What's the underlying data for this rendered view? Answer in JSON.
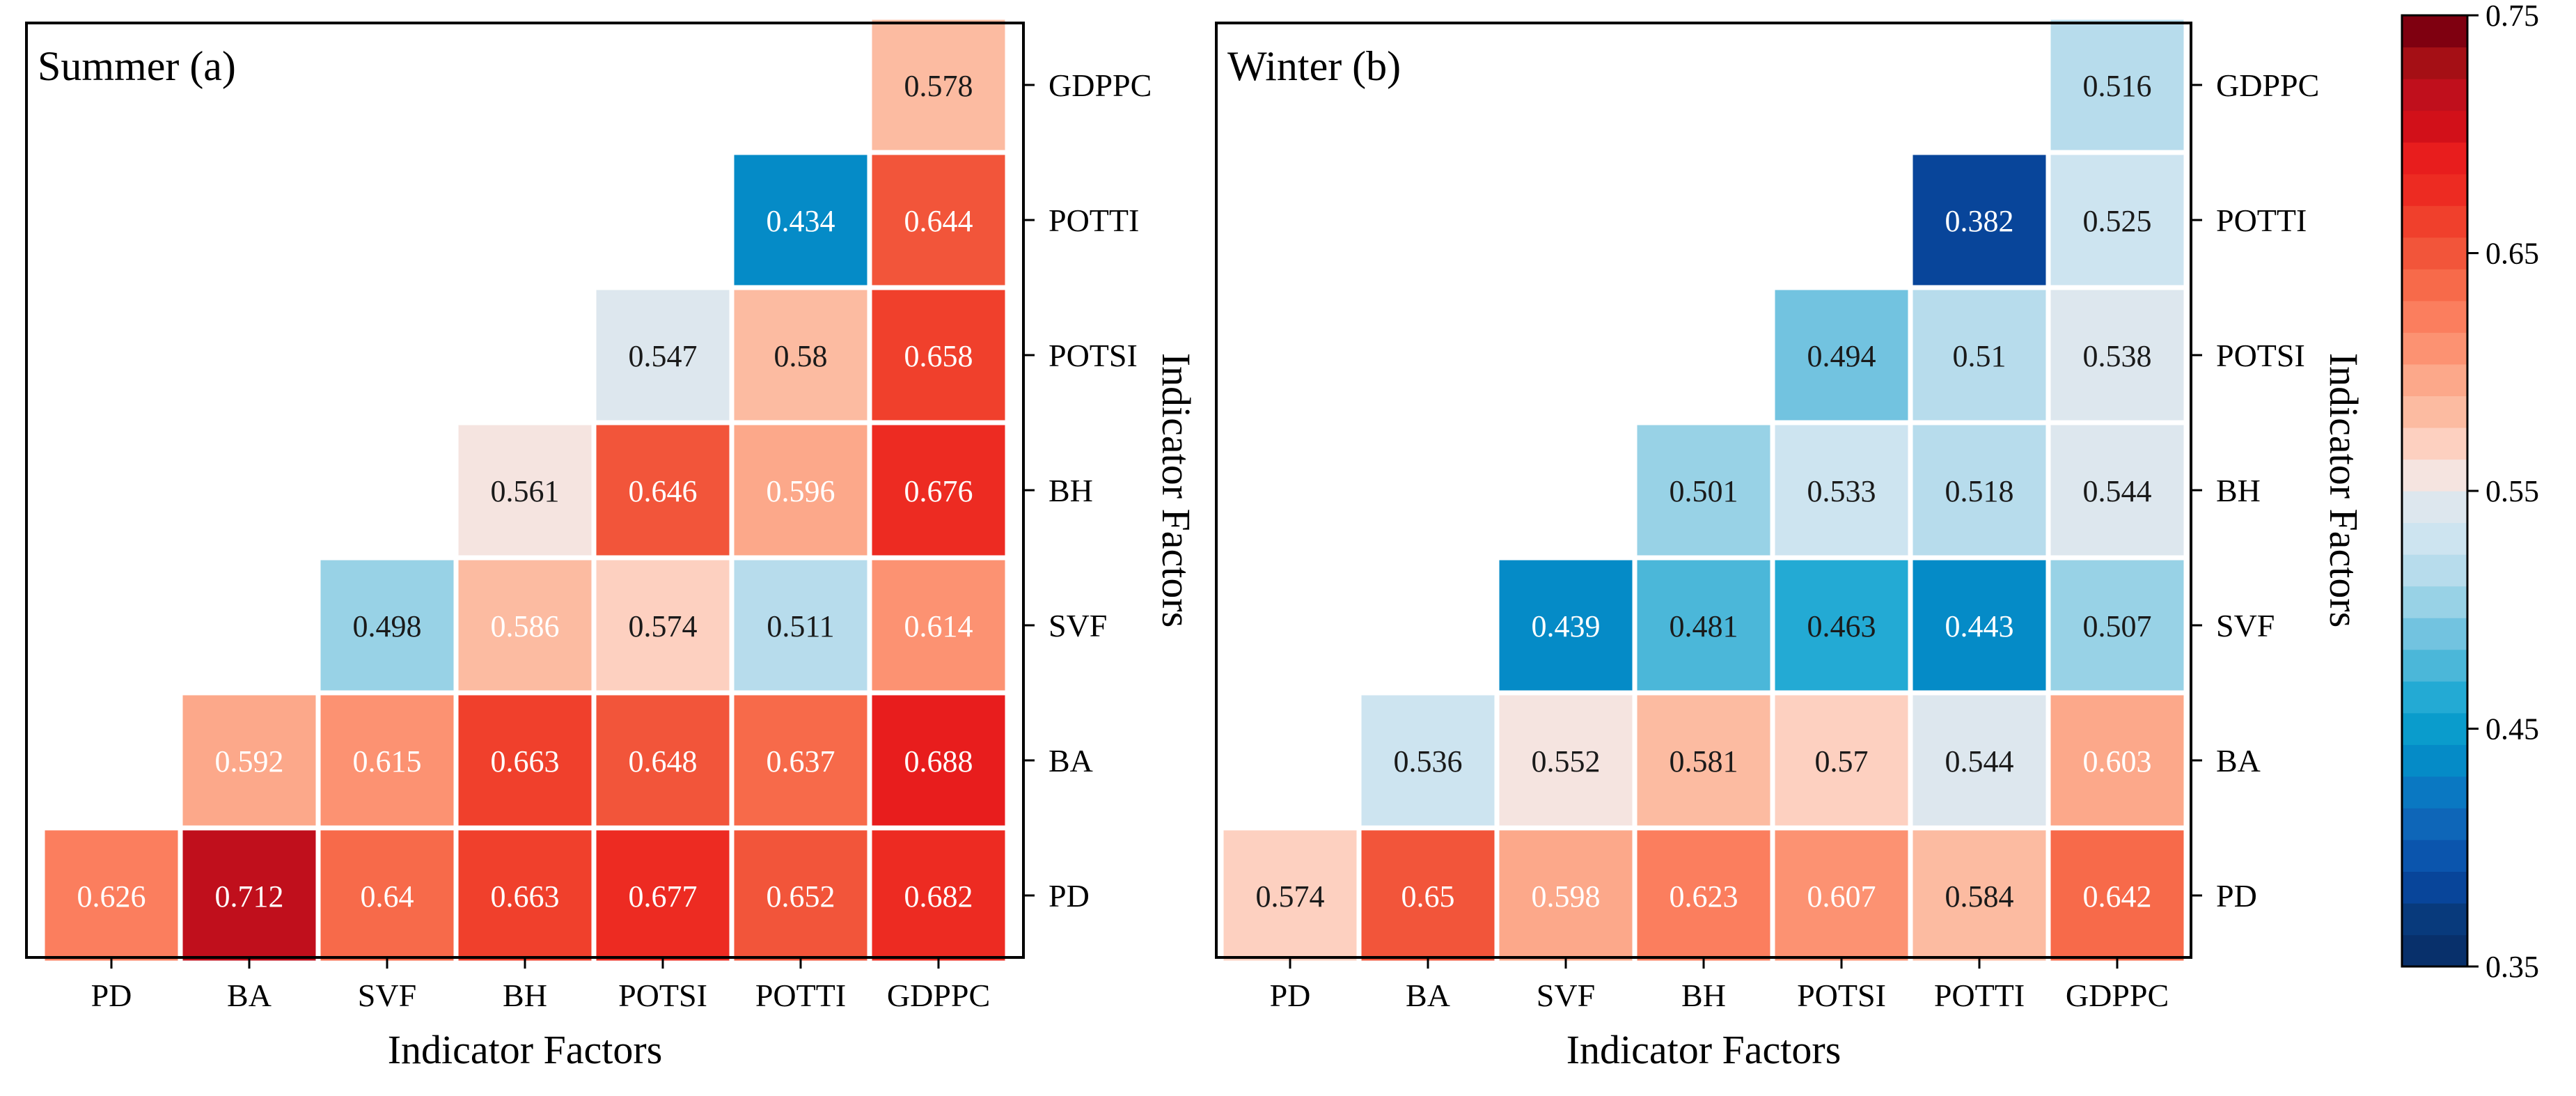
{
  "chart_data": [
    {
      "type": "heatmap",
      "title": "Summer (a)",
      "xlabel": "Indicator Factors",
      "ylabel": "Indicator Factors",
      "x_categories": [
        "PD",
        "BA",
        "SVF",
        "BH",
        "POTSI",
        "POTTI",
        "GDPPC"
      ],
      "y_categories": [
        "GDPPC",
        "POTTI",
        "POTSI",
        "BH",
        "SVF",
        "BA",
        "PD"
      ],
      "cells": [
        {
          "x": "GDPPC",
          "y": "GDPPC",
          "value": 0.578,
          "label": "0.578"
        },
        {
          "x": "POTTI",
          "y": "POTTI",
          "value": 0.434,
          "label": "0.434"
        },
        {
          "x": "GDPPC",
          "y": "POTTI",
          "value": 0.644,
          "label": "0.644"
        },
        {
          "x": "POTSI",
          "y": "POTSI",
          "value": 0.547,
          "label": "0.547"
        },
        {
          "x": "POTTI",
          "y": "POTSI",
          "value": 0.58,
          "label": "0.58"
        },
        {
          "x": "GDPPC",
          "y": "POTSI",
          "value": 0.658,
          "label": "0.658"
        },
        {
          "x": "BH",
          "y": "BH",
          "value": 0.561,
          "label": "0.561"
        },
        {
          "x": "POTSI",
          "y": "BH",
          "value": 0.646,
          "label": "0.646"
        },
        {
          "x": "POTTI",
          "y": "BH",
          "value": 0.596,
          "label": "0.596"
        },
        {
          "x": "GDPPC",
          "y": "BH",
          "value": 0.676,
          "label": "0.676"
        },
        {
          "x": "SVF",
          "y": "SVF",
          "value": 0.498,
          "label": "0.498"
        },
        {
          "x": "BH",
          "y": "SVF",
          "value": 0.586,
          "label": "0.586"
        },
        {
          "x": "POTSI",
          "y": "SVF",
          "value": 0.574,
          "label": "0.574"
        },
        {
          "x": "POTTI",
          "y": "SVF",
          "value": 0.511,
          "label": "0.511"
        },
        {
          "x": "GDPPC",
          "y": "SVF",
          "value": 0.614,
          "label": "0.614"
        },
        {
          "x": "BA",
          "y": "BA",
          "value": 0.592,
          "label": "0.592"
        },
        {
          "x": "SVF",
          "y": "BA",
          "value": 0.615,
          "label": "0.615"
        },
        {
          "x": "BH",
          "y": "BA",
          "value": 0.663,
          "label": "0.663"
        },
        {
          "x": "POTSI",
          "y": "BA",
          "value": 0.648,
          "label": "0.648"
        },
        {
          "x": "POTTI",
          "y": "BA",
          "value": 0.637,
          "label": "0.637"
        },
        {
          "x": "GDPPC",
          "y": "BA",
          "value": 0.688,
          "label": "0.688"
        },
        {
          "x": "PD",
          "y": "PD",
          "value": 0.626,
          "label": "0.626"
        },
        {
          "x": "BA",
          "y": "PD",
          "value": 0.712,
          "label": "0.712"
        },
        {
          "x": "SVF",
          "y": "PD",
          "value": 0.64,
          "label": "0.64"
        },
        {
          "x": "BH",
          "y": "PD",
          "value": 0.663,
          "label": "0.663"
        },
        {
          "x": "POTSI",
          "y": "PD",
          "value": 0.677,
          "label": "0.677"
        },
        {
          "x": "POTTI",
          "y": "PD",
          "value": 0.652,
          "label": "0.652"
        },
        {
          "x": "GDPPC",
          "y": "PD",
          "value": 0.682,
          "label": "0.682"
        }
      ]
    },
    {
      "type": "heatmap",
      "title": "Winter (b)",
      "xlabel": "Indicator Factors",
      "ylabel": "Indicator Factors",
      "x_categories": [
        "PD",
        "BA",
        "SVF",
        "BH",
        "POTSI",
        "POTTI",
        "GDPPC"
      ],
      "y_categories": [
        "GDPPC",
        "POTTI",
        "POTSI",
        "BH",
        "SVF",
        "BA",
        "PD"
      ],
      "cells": [
        {
          "x": "GDPPC",
          "y": "GDPPC",
          "value": 0.516,
          "label": "0.516"
        },
        {
          "x": "POTTI",
          "y": "POTTI",
          "value": 0.382,
          "label": "0.382"
        },
        {
          "x": "GDPPC",
          "y": "POTTI",
          "value": 0.525,
          "label": "0.525"
        },
        {
          "x": "POTSI",
          "y": "POTSI",
          "value": 0.494,
          "label": "0.494"
        },
        {
          "x": "POTTI",
          "y": "POTSI",
          "value": 0.51,
          "label": "0.51"
        },
        {
          "x": "GDPPC",
          "y": "POTSI",
          "value": 0.538,
          "label": "0.538"
        },
        {
          "x": "BH",
          "y": "BH",
          "value": 0.501,
          "label": "0.501"
        },
        {
          "x": "POTSI",
          "y": "BH",
          "value": 0.533,
          "label": "0.533"
        },
        {
          "x": "POTTI",
          "y": "BH",
          "value": 0.518,
          "label": "0.518"
        },
        {
          "x": "GDPPC",
          "y": "BH",
          "value": 0.544,
          "label": "0.544"
        },
        {
          "x": "SVF",
          "y": "SVF",
          "value": 0.439,
          "label": "0.439"
        },
        {
          "x": "BH",
          "y": "SVF",
          "value": 0.481,
          "label": "0.481"
        },
        {
          "x": "POTSI",
          "y": "SVF",
          "value": 0.463,
          "label": "0.463"
        },
        {
          "x": "POTTI",
          "y": "SVF",
          "value": 0.443,
          "label": "0.443"
        },
        {
          "x": "GDPPC",
          "y": "SVF",
          "value": 0.507,
          "label": "0.507"
        },
        {
          "x": "BA",
          "y": "BA",
          "value": 0.536,
          "label": "0.536"
        },
        {
          "x": "SVF",
          "y": "BA",
          "value": 0.552,
          "label": "0.552"
        },
        {
          "x": "BH",
          "y": "BA",
          "value": 0.581,
          "label": "0.581"
        },
        {
          "x": "POTSI",
          "y": "BA",
          "value": 0.57,
          "label": "0.57"
        },
        {
          "x": "POTTI",
          "y": "BA",
          "value": 0.544,
          "label": "0.544"
        },
        {
          "x": "GDPPC",
          "y": "BA",
          "value": 0.603,
          "label": "0.603"
        },
        {
          "x": "PD",
          "y": "PD",
          "value": 0.574,
          "label": "0.574"
        },
        {
          "x": "BA",
          "y": "PD",
          "value": 0.65,
          "label": "0.65"
        },
        {
          "x": "SVF",
          "y": "PD",
          "value": 0.598,
          "label": "0.598"
        },
        {
          "x": "BH",
          "y": "PD",
          "value": 0.623,
          "label": "0.623"
        },
        {
          "x": "POTSI",
          "y": "PD",
          "value": 0.607,
          "label": "0.607"
        },
        {
          "x": "POTTI",
          "y": "PD",
          "value": 0.584,
          "label": "0.584"
        },
        {
          "x": "GDPPC",
          "y": "PD",
          "value": 0.642,
          "label": "0.642"
        }
      ]
    }
  ],
  "colorbar": {
    "range": [
      0.35,
      0.75
    ],
    "ticks": [
      {
        "value": 0.75,
        "label": "0.75"
      },
      {
        "value": 0.65,
        "label": "0.65"
      },
      {
        "value": 0.55,
        "label": "0.55"
      },
      {
        "value": 0.45,
        "label": "0.45"
      },
      {
        "value": 0.35,
        "label": "0.35"
      }
    ],
    "colors": [
      "#08306b",
      "#083a7c",
      "#08459a",
      "#0b55ad",
      "#0e66b8",
      "#0a78c2",
      "#058bc7",
      "#0a9ccc",
      "#23aad4",
      "#4bb7d9",
      "#72c3e0",
      "#98d2e6",
      "#b7dcec",
      "#cde4f0",
      "#dde7ee",
      "#f5e4e0",
      "#fdd0c0",
      "#fcbba1",
      "#fca88a",
      "#fc9272",
      "#fb7e5e",
      "#f76a4a",
      "#f2553a",
      "#f0402c",
      "#ed2b22",
      "#e81d1d",
      "#d21019",
      "#c00f1c",
      "#a50f15",
      "#7f0010"
    ]
  }
}
